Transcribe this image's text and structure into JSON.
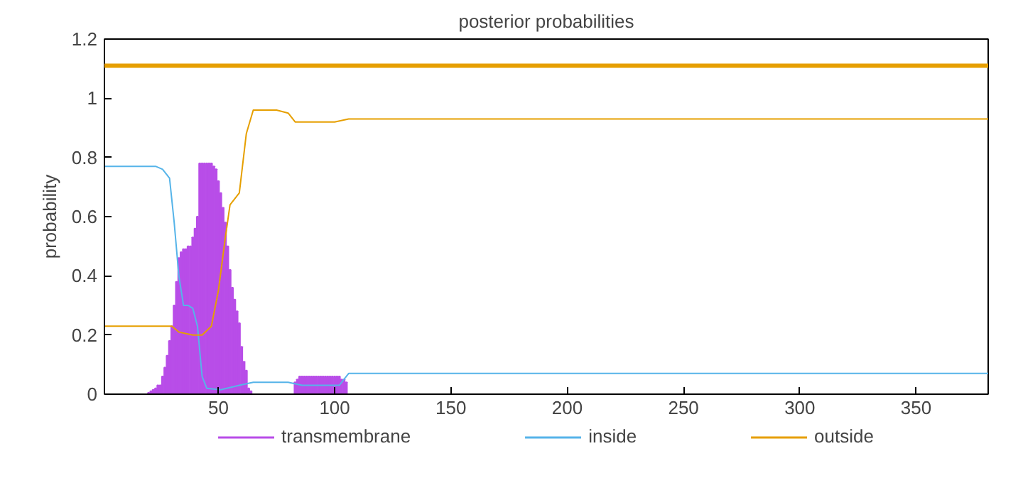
{
  "chart_data": {
    "type": "line",
    "title": "posterior probabilities",
    "ylabel": "probability",
    "xlim": [
      1,
      381
    ],
    "xticks": [
      50,
      100,
      150,
      200,
      250,
      300,
      350
    ],
    "ylim": [
      0,
      1.2
    ],
    "yticks": [
      0,
      {
        "value": 0.2,
        "label": "0.2"
      },
      {
        "value": 0.4,
        "label": "0.4"
      },
      {
        "value": 0.6,
        "label": "0.6"
      },
      {
        "value": 0.8,
        "label": "0.8"
      },
      1,
      {
        "value": 1.2,
        "label": "1.2"
      }
    ],
    "grid": false,
    "legend": "bottom",
    "ref_lines": [
      {
        "axis": "y",
        "value": 1.11,
        "color": "#e69f00"
      }
    ],
    "series": [
      {
        "name": "transmembrane",
        "type": "bar",
        "color": "#b84de8",
        "x": [
          20,
          21,
          22,
          23,
          24,
          25,
          26,
          27,
          28,
          29,
          30,
          31,
          32,
          33,
          34,
          35,
          36,
          37,
          38,
          39,
          40,
          41,
          42,
          43,
          44,
          45,
          46,
          47,
          48,
          49,
          50,
          51,
          52,
          53,
          54,
          55,
          56,
          57,
          58,
          59,
          60,
          61,
          62,
          63,
          64,
          83,
          84,
          85,
          86,
          87,
          88,
          89,
          90,
          91,
          92,
          93,
          94,
          95,
          96,
          97,
          98,
          99,
          100,
          101,
          102,
          103,
          104,
          105
        ],
        "values": [
          0.005,
          0.01,
          0.015,
          0.02,
          0.03,
          0.03,
          0.06,
          0.09,
          0.13,
          0.18,
          0.23,
          0.3,
          0.38,
          0.46,
          0.48,
          0.49,
          0.49,
          0.5,
          0.5,
          0.53,
          0.56,
          0.6,
          0.78,
          0.78,
          0.78,
          0.78,
          0.78,
          0.78,
          0.77,
          0.76,
          0.72,
          0.68,
          0.63,
          0.58,
          0.5,
          0.42,
          0.36,
          0.32,
          0.28,
          0.24,
          0.16,
          0.11,
          0.08,
          0.02,
          0.01,
          0.04,
          0.05,
          0.06,
          0.06,
          0.06,
          0.06,
          0.06,
          0.06,
          0.06,
          0.06,
          0.06,
          0.06,
          0.06,
          0.06,
          0.06,
          0.06,
          0.06,
          0.06,
          0.06,
          0.06,
          0.05,
          0.05,
          0.04
        ]
      },
      {
        "name": "inside",
        "color": "#56b4e9",
        "x": [
          1,
          23,
          26,
          29,
          31,
          33,
          35,
          37,
          39,
          41,
          43,
          45,
          51,
          59,
          65,
          80,
          86,
          102,
          104,
          106,
          381
        ],
        "values": [
          0.77,
          0.77,
          0.76,
          0.73,
          0.58,
          0.4,
          0.3,
          0.3,
          0.29,
          0.23,
          0.06,
          0.02,
          0.015,
          0.03,
          0.04,
          0.04,
          0.03,
          0.03,
          0.05,
          0.07,
          0.07
        ]
      },
      {
        "name": "outside",
        "color": "#e69f00",
        "x": [
          1,
          30,
          33,
          39,
          43,
          47,
          50,
          53,
          55,
          59,
          62,
          65,
          75,
          80,
          83,
          100,
          106,
          381
        ],
        "values": [
          0.23,
          0.23,
          0.21,
          0.2,
          0.2,
          0.23,
          0.35,
          0.53,
          0.64,
          0.68,
          0.88,
          0.96,
          0.96,
          0.95,
          0.92,
          0.92,
          0.93,
          0.93
        ]
      }
    ]
  }
}
